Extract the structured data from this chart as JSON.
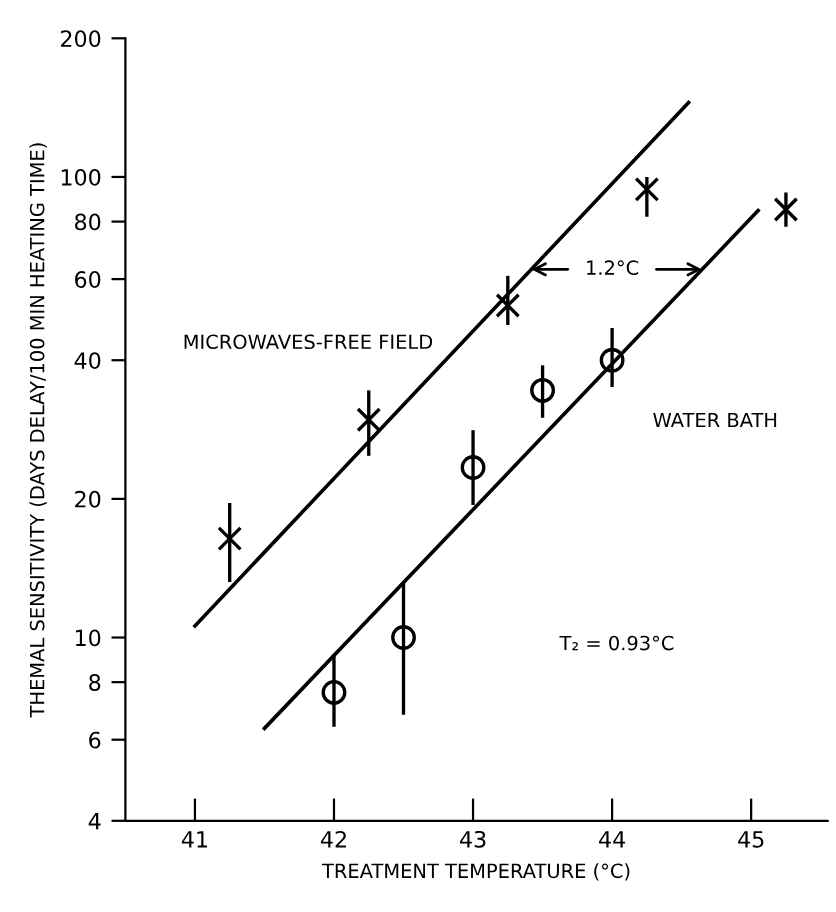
{
  "chart_data": {
    "type": "scatter",
    "xlabel": "TREATMENT TEMPERATURE (°C)",
    "ylabel": "THEMAL SENSITIVITY (DAYS DELAY/100 MIN HEATING TIME)",
    "log": "y",
    "xlim": [
      40.5,
      45.55
    ],
    "ylim": [
      4,
      200
    ],
    "xticks": [
      41,
      42,
      43,
      44,
      45
    ],
    "yticks": [
      4,
      6,
      8,
      10,
      20,
      40,
      60,
      80,
      100,
      200
    ],
    "grid": false,
    "legend": false,
    "series": [
      {
        "marker": "cross",
        "color": "#000000",
        "x": [
          41.25,
          42.25,
          43.25,
          44.25,
          45.25
        ],
        "values": [
          16.4,
          29.7,
          52.6,
          94,
          85
        ],
        "errors": [
          [
            13.2,
            19.6
          ],
          [
            24.8,
            34.4
          ],
          [
            47.7,
            61
          ],
          [
            82,
            100
          ],
          [
            78,
            92.5
          ]
        ]
      },
      {
        "marker": "circle",
        "color": "#000000",
        "x": [
          42.0,
          42.5,
          43.0,
          43.5,
          44.0
        ],
        "values": [
          7.6,
          10,
          23.4,
          34.4,
          40
        ],
        "errors": [
          [
            6.4,
            9.2
          ],
          [
            6.8,
            13.2
          ],
          [
            19.4,
            28.2
          ],
          [
            30,
            39
          ],
          [
            35,
            47
          ]
        ]
      },
      {
        "type": "line",
        "color": "#000000",
        "x": [
          41.0,
          44.55
        ],
        "values": [
          10.6,
          145
        ]
      },
      {
        "type": "line",
        "color": "#000000",
        "x": [
          41.5,
          45.05
        ],
        "values": [
          6.35,
          84.5
        ]
      }
    ],
    "annotations": [
      "MICROWAVES-FREE FIELD",
      "WATER BATH",
      "T₂ = 0.93°C",
      {
        "text": "1.2°C",
        "x": 44.0,
        "y": 63
      }
    ]
  }
}
